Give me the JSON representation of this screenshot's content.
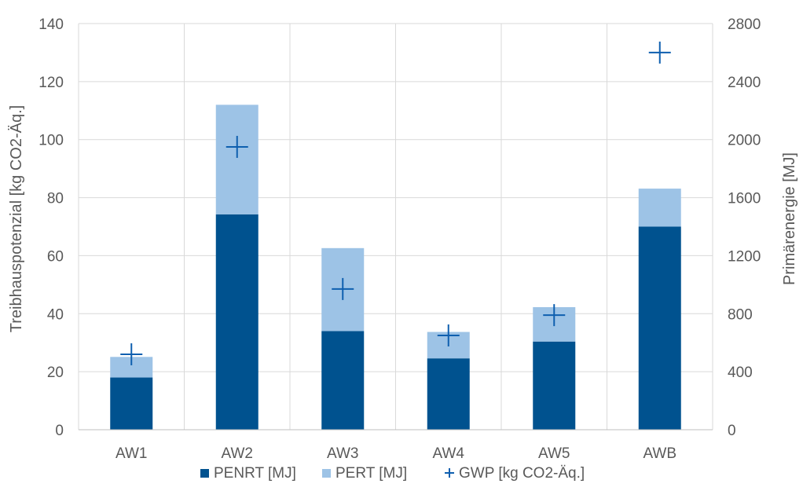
{
  "chart_data": {
    "type": "bar",
    "subtype": "stacked bar with marker overlay, dual y-axis",
    "categories": [
      "AW1",
      "AW2",
      "AW3",
      "AW4",
      "AW5",
      "AWB"
    ],
    "series": [
      {
        "name": "PENRT [MJ]",
        "axis": "right",
        "kind": "bar",
        "color": "#00528F",
        "values": [
          360,
          1485,
          680,
          492,
          608,
          1400
        ]
      },
      {
        "name": "PERT [MJ]",
        "axis": "right",
        "kind": "bar",
        "color": "#9DC3E6",
        "values": [
          142,
          755,
          572,
          182,
          237,
          262
        ]
      },
      {
        "name": "GWP [kg CO2-Äq.]",
        "axis": "left",
        "kind": "marker",
        "marker": "plus",
        "color": "#0E5FAF",
        "values": [
          26,
          97.5,
          48.5,
          32.5,
          39.5,
          130
        ]
      }
    ],
    "y_left": {
      "label": "Treibhauspotenzial [kg CO2-Äq.]",
      "ylim": [
        0,
        140
      ],
      "ticks": [
        "0",
        "20",
        "40",
        "60",
        "80",
        "100",
        "120",
        "140"
      ]
    },
    "y_right": {
      "label": "Primärenergie [MJ]",
      "ylim": [
        0,
        2800
      ],
      "ticks": [
        "0",
        "400",
        "800",
        "1200",
        "1600",
        "2000",
        "2400",
        "2800"
      ]
    },
    "grid": true,
    "legend_position": "bottom"
  }
}
